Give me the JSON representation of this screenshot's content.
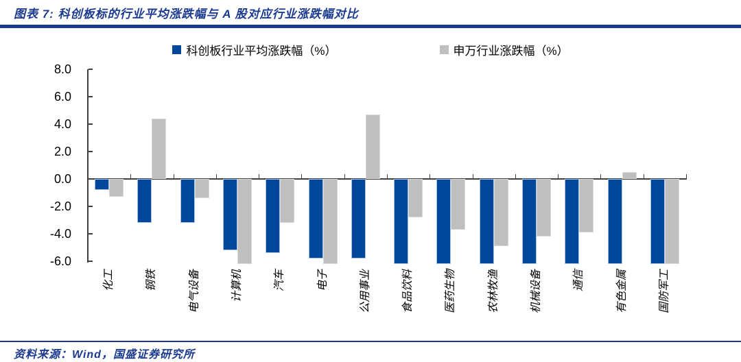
{
  "header": {
    "title": "图表 7: 科创板标的行业平均涨跌幅与 A 股对应行业涨跌幅对比"
  },
  "footer": {
    "source": "资料来源：Wind，国盛证券研究所"
  },
  "colors": {
    "navy_accent": "#1B3A8F",
    "bar_blue": "#00479C",
    "bar_gray": "#BFBFBF",
    "axis": "#404040"
  },
  "chart_data": {
    "type": "bar",
    "title": "图表 7: 科创板标的行业平均涨跌幅与 A 股对应行业涨跌幅对比",
    "categories": [
      "化工",
      "钢铁",
      "电气设备",
      "计算机",
      "汽车",
      "电子",
      "公用事业",
      "食品饮料",
      "医药生物",
      "农林牧渔",
      "机械设备",
      "通信",
      "有色金属",
      "国防军工"
    ],
    "series": [
      {
        "name": "科创板行业平均涨跌幅（%）",
        "color": "#00479C",
        "values": [
          -0.8,
          -3.2,
          -3.2,
          -5.2,
          -5.4,
          -5.8,
          -5.8,
          -6.2,
          -6.2,
          -6.2,
          -6.2,
          -6.2,
          -6.2,
          -6.2
        ]
      },
      {
        "name": "申万行业涨跌幅（%）",
        "color": "#BFBFBF",
        "values": [
          -1.3,
          4.4,
          -1.4,
          -6.2,
          -3.2,
          -6.2,
          4.7,
          -2.8,
          -3.7,
          -4.9,
          -4.2,
          -3.9,
          0.5,
          -6.2
        ]
      }
    ],
    "ytick_labels": [
      "8.0",
      "6.0",
      "4.0",
      "2.0",
      "0.0",
      "-2.0",
      "-4.0",
      "-6.0"
    ],
    "yticks": [
      8.0,
      6.0,
      4.0,
      2.0,
      0.0,
      -2.0,
      -4.0,
      -6.0
    ],
    "ylim": [
      -6.2,
      8.0
    ],
    "xlabel": "",
    "ylabel": "",
    "grid": false,
    "legend_position": "top",
    "note": "触底于 -6.2 的柱体在图中被绘至坐标区底部（可能截断）"
  }
}
